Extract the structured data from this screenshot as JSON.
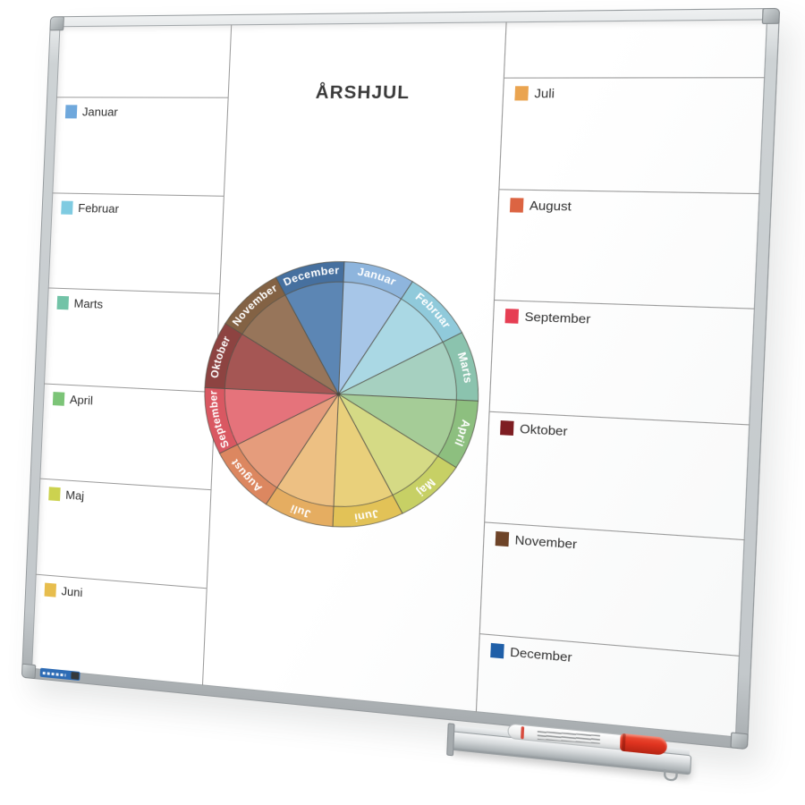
{
  "board": {
    "title": "ÅRSHJUL",
    "line_color": "#9b9b9b",
    "text_color": "#303030",
    "frame_color": "#c6cbce",
    "left_legend": [
      {
        "label": "Januar",
        "color": "#6fa8dc"
      },
      {
        "label": "Februar",
        "color": "#7fcbe1"
      },
      {
        "label": "Marts",
        "color": "#72c3a7"
      },
      {
        "label": "April",
        "color": "#7cc477"
      },
      {
        "label": "Maj",
        "color": "#ccd24f"
      },
      {
        "label": "Juni",
        "color": "#e7bd4d"
      }
    ],
    "right_legend": [
      {
        "label": "Juli",
        "color": "#eaa450"
      },
      {
        "label": "August",
        "color": "#dc6442"
      },
      {
        "label": "September",
        "color": "#e63e53"
      },
      {
        "label": "Oktober",
        "color": "#7e1d22"
      },
      {
        "label": "November",
        "color": "#6e4428"
      },
      {
        "label": "December",
        "color": "#1f5fa8"
      }
    ]
  },
  "chart_data": {
    "type": "pie",
    "title": "ÅRSHJUL",
    "description": "Year wheel: 12 equal month segments, clockwise from top, labels in a darker outer ring",
    "direction": "clockwise",
    "start_angle_deg": 0,
    "label_color": "#ffffff",
    "outline_color": "#56544b",
    "segments": [
      {
        "label": "Januar",
        "value": 1,
        "fill": "#a7c6e8",
        "rim": "#8eb5dd"
      },
      {
        "label": "Februar",
        "value": 1,
        "fill": "#aad8e4",
        "rim": "#90cadb"
      },
      {
        "label": "Marts",
        "value": 1,
        "fill": "#a6d0c0",
        "rim": "#8bc3ae"
      },
      {
        "label": "April",
        "value": 1,
        "fill": "#a5cc97",
        "rim": "#8dbf7f"
      },
      {
        "label": "Maj",
        "value": 1,
        "fill": "#d5da85",
        "rim": "#c7d065"
      },
      {
        "label": "Juni",
        "value": 1,
        "fill": "#e9d07b",
        "rim": "#e2c257"
      },
      {
        "label": "Juli",
        "value": 1,
        "fill": "#edc083",
        "rim": "#e5ad61"
      },
      {
        "label": "August",
        "value": 1,
        "fill": "#e59c7c",
        "rim": "#dc8760"
      },
      {
        "label": "September",
        "value": 1,
        "fill": "#e5737b",
        "rim": "#d95862"
      },
      {
        "label": "Oktober",
        "value": 1,
        "fill": "#a55654",
        "rim": "#8d4341"
      },
      {
        "label": "November",
        "value": 1,
        "fill": "#97755a",
        "rim": "#836244"
      },
      {
        "label": "December",
        "value": 1,
        "fill": "#5c86b4",
        "rim": "#46709f"
      }
    ]
  },
  "accessories": {
    "marker_body_color": "#ffffff",
    "marker_cap_color": "#e03420",
    "brand_sticker_color": "#2e6cb5"
  }
}
